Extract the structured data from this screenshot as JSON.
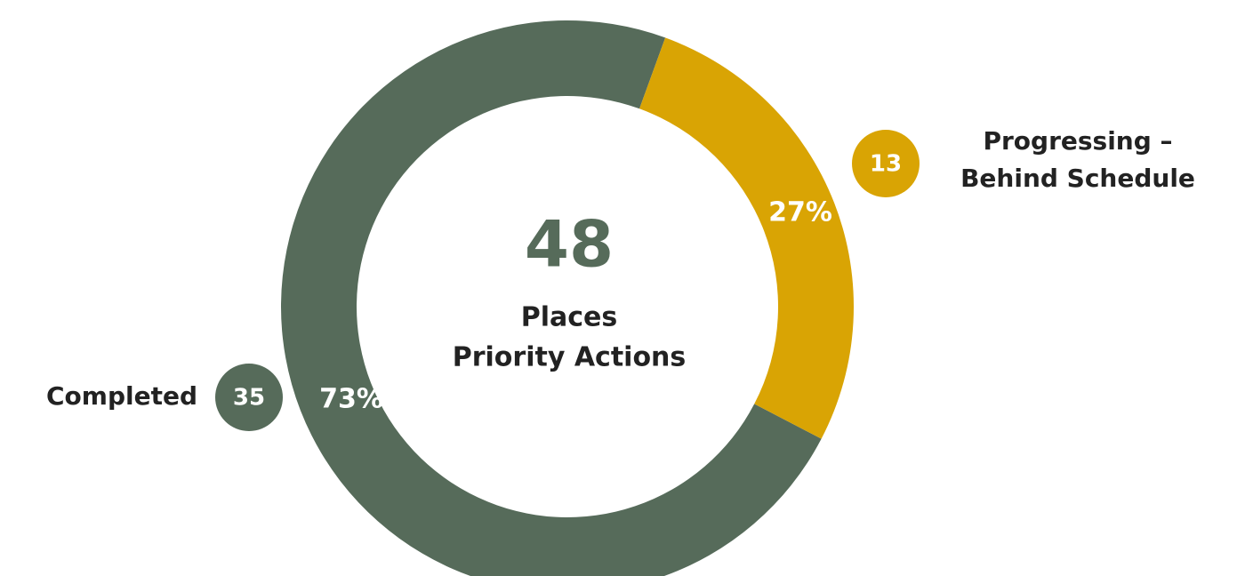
{
  "chart_data": {
    "type": "donut",
    "categories": [
      [
        "Completed"
      ],
      [
        "Progressing –",
        "Behind Schedule"
      ]
    ],
    "values": [
      35,
      13
    ],
    "shares": [
      73,
      27
    ],
    "share_labels": [
      "73%",
      "27%"
    ],
    "colors": [
      "#566b5a",
      "#d9a404"
    ],
    "total": 48,
    "center_text": [
      "Places",
      "Priority Actions"
    ]
  }
}
